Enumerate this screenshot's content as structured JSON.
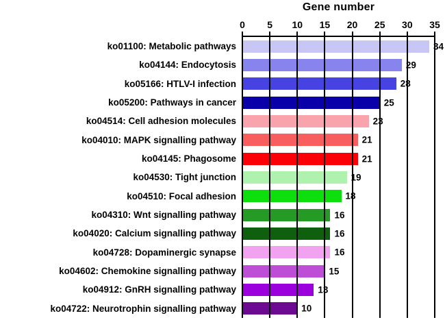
{
  "chart_data": {
    "type": "bar",
    "orientation": "horizontal",
    "title": "Gene number",
    "xlabel": "Gene number",
    "ylabel": "",
    "xlim": [
      0,
      35
    ],
    "xticks": [
      0,
      5,
      10,
      15,
      20,
      25,
      30,
      35
    ],
    "grid": "vertical-lines-at-each-tick",
    "legend_position": "none",
    "value_labels_shown": true,
    "categories": [
      "ko01100: Metabolic pathways",
      "ko04144: Endocytosis",
      "ko05166: HTLV-I infection",
      "ko05200: Pathways in cancer",
      "ko04514: Cell adhesion molecules",
      "ko04010: MAPK signalling pathway",
      "ko04145: Phagosome",
      "ko04530: Tight junction",
      "ko04510: Focal adhesion",
      "ko04310: Wnt signalling pathway",
      "ko04020: Calcium signalling pathway",
      "ko04728: Dopaminergic synapse",
      "ko04602: Chemokine signalling pathway",
      "ko04912: GnRH signalling pathway",
      "ko04722: Neurotrophin signalling pathway"
    ],
    "values": [
      34,
      29,
      28,
      25,
      23,
      21,
      21,
      19,
      18,
      16,
      16,
      16,
      15,
      13,
      10
    ],
    "colors": [
      "#c8c6f5",
      "#8884ee",
      "#4743e2",
      "#0a00aa",
      "#f9a4ac",
      "#f95e5e",
      "#fb0007",
      "#aef2ae",
      "#0ddf0d",
      "#259a25",
      "#0e5f0e",
      "#f1a3f0",
      "#bd4ed5",
      "#9b00dd",
      "#6c0b91"
    ]
  },
  "style_colors": {
    "axis": "#000000",
    "background": "#ffffff",
    "text": "#000000"
  }
}
